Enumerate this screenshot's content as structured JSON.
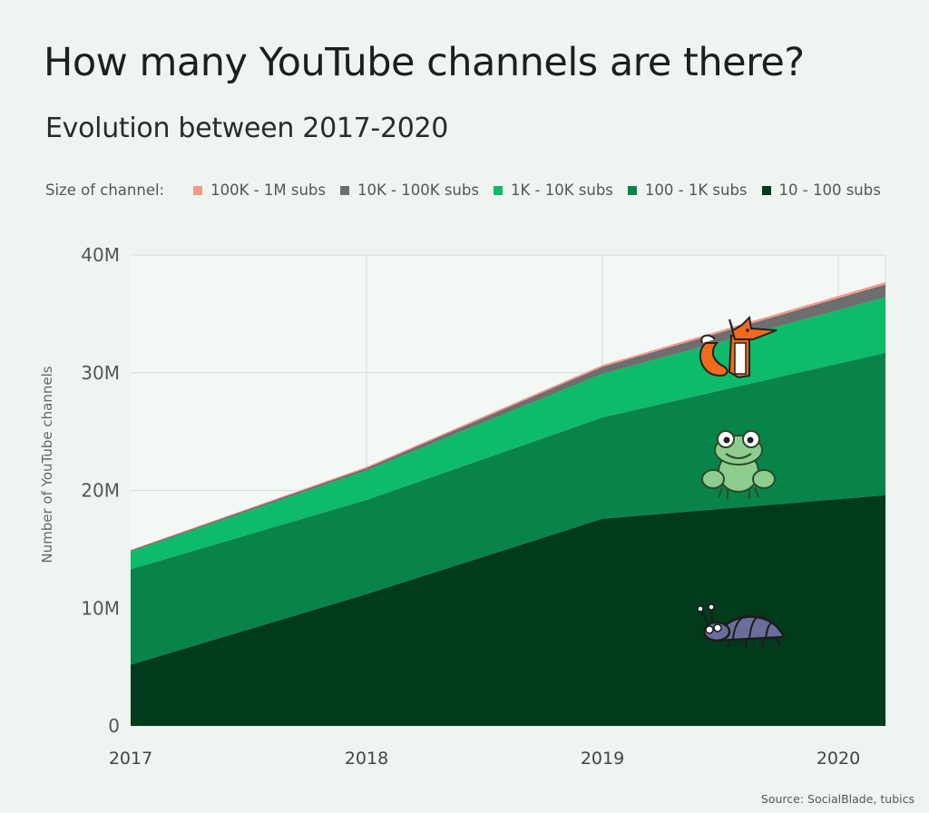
{
  "title": "How many YouTube channels are there?",
  "subtitle": "Evolution between 2017-2020",
  "legend_title": "Size of channel:",
  "source": "Source: SocialBlade, tubics",
  "colors": {
    "100K - 1M subs": "#f4988a",
    "10K - 100K subs": "#6e6e6e",
    "1K - 10K subs": "#0dbb6a",
    "100 - 1K subs": "#08844a",
    "10 - 100 subs": "#023b1c",
    "grid": "#d6dcd8",
    "plot_background": "#f4f8f5"
  },
  "icons": [
    "fox-illustration",
    "frog-illustration",
    "beetle-illustration"
  ],
  "chart_data": {
    "type": "area",
    "stacked": true,
    "ylabel": "Number of YouTube channels",
    "xlabel": "",
    "x": [
      2017,
      2018,
      2019,
      2020.2
    ],
    "x_ticks": [
      "2017",
      "2018",
      "2019",
      "2020"
    ],
    "x_tick_values": [
      2017,
      2018,
      2019,
      2020
    ],
    "y_ticks": [
      "0",
      "10M",
      "20M",
      "30M",
      "40M"
    ],
    "y_tick_values": [
      0,
      10000000,
      20000000,
      30000000,
      40000000
    ],
    "ylim": [
      0,
      40000000
    ],
    "xlim": [
      2017,
      2020.2
    ],
    "grid": true,
    "legend_position": "top",
    "series": [
      {
        "name": "10 - 100 subs",
        "values": [
          5200000,
          11200000,
          17600000,
          19600000
        ]
      },
      {
        "name": "100 - 1K subs",
        "values": [
          8100000,
          8000000,
          8600000,
          12100000
        ]
      },
      {
        "name": "1K - 10K subs",
        "values": [
          1500000,
          2500000,
          3700000,
          4700000
        ]
      },
      {
        "name": "10K - 100K subs",
        "values": [
          100000,
          200000,
          600000,
          1100000
        ]
      },
      {
        "name": "100K - 1M subs",
        "values": [
          50000,
          100000,
          150000,
          200000
        ]
      }
    ]
  }
}
